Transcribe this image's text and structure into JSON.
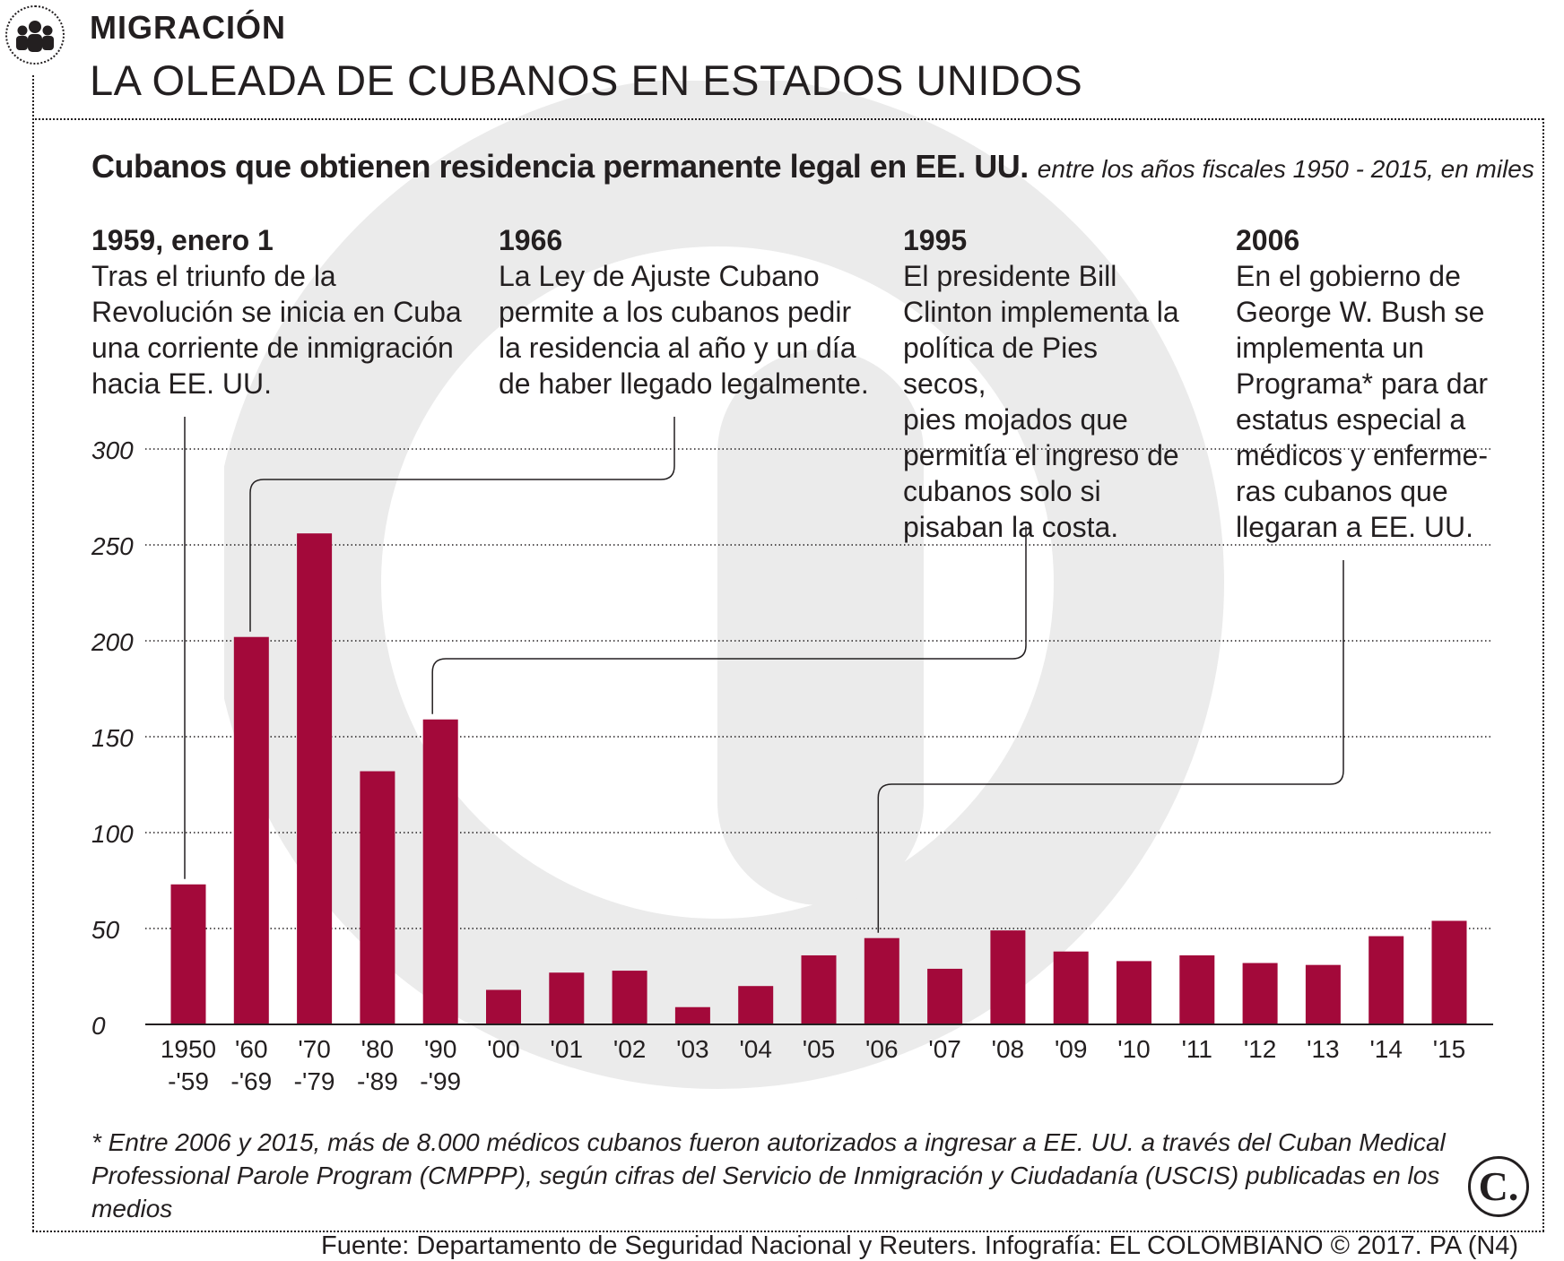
{
  "header": {
    "section": "MIGRACIÓN",
    "title": "LA OLEADA DE CUBANOS EN ESTADOS UNIDOS"
  },
  "subtitle": {
    "main": "Cubanos que obtienen residencia permanente legal en EE. UU.",
    "detail": "entre los años fiscales 1950 - 2015, en miles"
  },
  "annotations": [
    {
      "year": "1959, enero 1",
      "lines": [
        "Tras el triunfo de la",
        "Revolución se inicia en Cuba",
        "una corriente de inmigración",
        "hacia EE. UU."
      ]
    },
    {
      "year": "1966",
      "lines": [
        "La Ley de Ajuste Cubano",
        "permite a los cubanos pedir",
        "la residencia al año y un día",
        "de haber llegado legalmente."
      ]
    },
    {
      "year": "1995",
      "lines": [
        "El presidente Bill",
        "Clinton implementa la",
        "política de Pies secos,",
        "pies mojados que",
        "permitía el ingreso de",
        "cubanos solo si",
        "pisaban la costa."
      ]
    },
    {
      "year": "2006",
      "lines": [
        "En el gobierno de",
        "George W. Bush se",
        "implementa un",
        "Programa* para dar",
        "estatus especial a",
        "médicos y enferme-",
        "ras cubanos que",
        "llegaran a EE. UU."
      ]
    }
  ],
  "chart_data": {
    "type": "bar",
    "title": "Cubanos que obtienen residencia permanente legal en EE. UU.",
    "subtitle": "entre los años fiscales 1950 - 2015, en miles",
    "categories": [
      "1950\n-'59",
      "'60\n-'69",
      "'70\n-'79",
      "'80\n-'89",
      "'90\n-'99",
      "'00",
      "'01",
      "'02",
      "'03",
      "'04",
      "'05",
      "'06",
      "'07",
      "'08",
      "'09",
      "'10",
      "'11",
      "'12",
      "'13",
      "'14",
      "'15"
    ],
    "category_labels": [
      [
        "1950",
        "-'59"
      ],
      [
        "'60",
        "-'69"
      ],
      [
        "'70",
        "-'79"
      ],
      [
        "'80",
        "-'89"
      ],
      [
        "'90",
        "-'99"
      ],
      [
        "'00"
      ],
      [
        "'01"
      ],
      [
        "'02"
      ],
      [
        "'03"
      ],
      [
        "'04"
      ],
      [
        "'05"
      ],
      [
        "'06"
      ],
      [
        "'07"
      ],
      [
        "'08"
      ],
      [
        "'09"
      ],
      [
        "'10"
      ],
      [
        "'11"
      ],
      [
        "'12"
      ],
      [
        "'13"
      ],
      [
        "'14"
      ],
      [
        "'15"
      ]
    ],
    "values": [
      73,
      202,
      256,
      132,
      159,
      18,
      27,
      28,
      9,
      20,
      36,
      45,
      29,
      49,
      38,
      33,
      36,
      32,
      31,
      46,
      54
    ],
    "yticks": [
      0,
      50,
      100,
      150,
      200,
      250,
      300
    ],
    "ylim": [
      0,
      300
    ],
    "xlabel": "",
    "ylabel": "",
    "grid": true,
    "bar_color": "#a3093a",
    "annotation_bar_index": [
      0,
      1,
      4,
      11
    ]
  },
  "footnote": "* Entre 2006 y 2015, más de 8.000 médicos cubanos fueron autorizados a ingresar a EE. UU. a través del Cuban Medical Professional Parole Program (CMPPP), según cifras del Servicio de Inmigración y Ciudadanía (USCIS) publicadas en los medios",
  "source": "Fuente: Departamento de Seguridad Nacional y Reuters. Infografía: EL COLOMBIANO © 2017. PA (N4)",
  "logo": "C.",
  "icons": {
    "section": "people-group-icon",
    "brand": "el-colombiano-logo"
  }
}
